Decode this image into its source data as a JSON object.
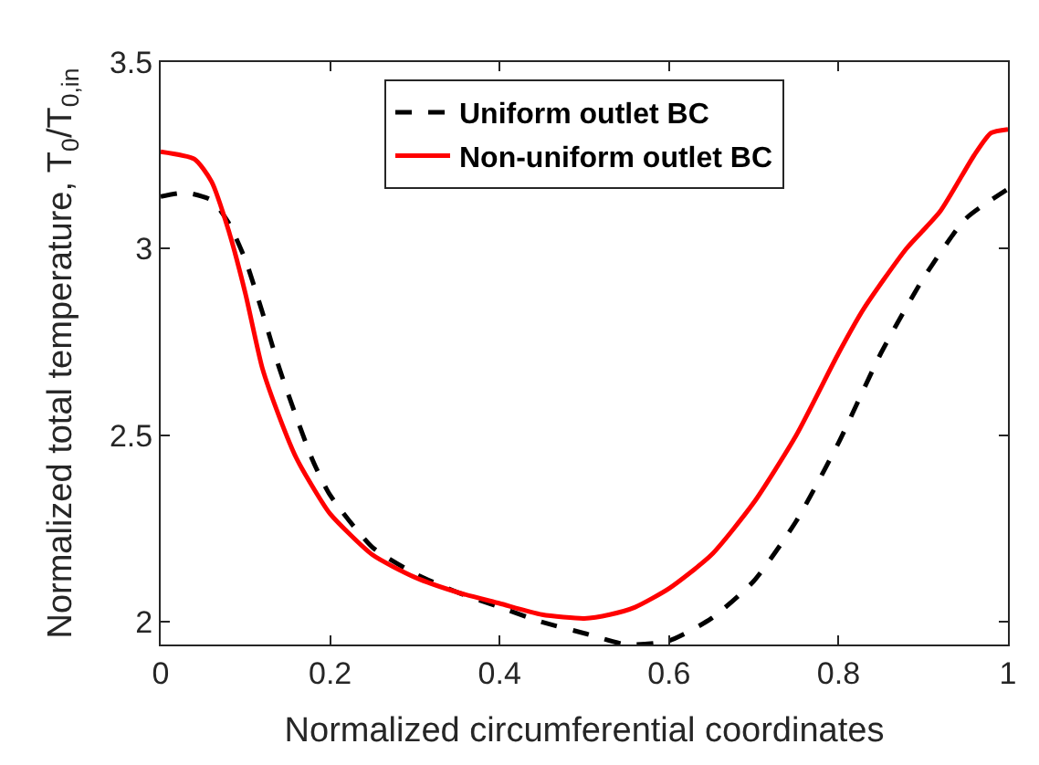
{
  "chart_data": {
    "type": "line",
    "xlabel": "Normalized circumferential coordinates",
    "ylabel": "Normalized total temperature, T$_{0}$/T$_{0,in}$",
    "xlim": [
      0,
      1
    ],
    "ylim": [
      1.94,
      3.5
    ],
    "xticks": [
      0,
      0.2,
      0.4,
      0.6,
      0.8,
      1
    ],
    "yticks": [
      2,
      2.5,
      3,
      3.5
    ],
    "legend": "top",
    "series": [
      {
        "name": "Uniform outlet BC",
        "color": "#000000",
        "line_style": "dashed",
        "x": [
          0,
          0.03,
          0.06,
          0.08,
          0.1,
          0.12,
          0.14,
          0.16,
          0.18,
          0.2,
          0.25,
          0.3,
          0.35,
          0.4,
          0.45,
          0.5,
          0.55,
          0.6,
          0.65,
          0.7,
          0.75,
          0.8,
          0.85,
          0.9,
          0.95,
          1.0
        ],
        "values": [
          3.14,
          3.15,
          3.13,
          3.07,
          2.97,
          2.83,
          2.68,
          2.55,
          2.43,
          2.34,
          2.2,
          2.13,
          2.08,
          2.04,
          2.0,
          1.97,
          1.94,
          1.95,
          2.01,
          2.11,
          2.27,
          2.48,
          2.72,
          2.92,
          3.08,
          3.16
        ]
      },
      {
        "name": "Non-uniform outlet BC",
        "color": "#ff0000",
        "line_style": "solid",
        "x": [
          0,
          0.04,
          0.06,
          0.08,
          0.1,
          0.12,
          0.14,
          0.16,
          0.18,
          0.2,
          0.25,
          0.3,
          0.35,
          0.4,
          0.45,
          0.5,
          0.53,
          0.56,
          0.6,
          0.65,
          0.7,
          0.75,
          0.8,
          0.83,
          0.88,
          0.92,
          0.96,
          0.98,
          1.0
        ],
        "values": [
          3.26,
          3.24,
          3.18,
          3.05,
          2.88,
          2.68,
          2.55,
          2.44,
          2.36,
          2.29,
          2.18,
          2.12,
          2.08,
          2.05,
          2.02,
          2.01,
          2.02,
          2.04,
          2.09,
          2.18,
          2.32,
          2.5,
          2.72,
          2.84,
          3.0,
          3.1,
          3.25,
          3.31,
          3.32
        ]
      }
    ]
  }
}
